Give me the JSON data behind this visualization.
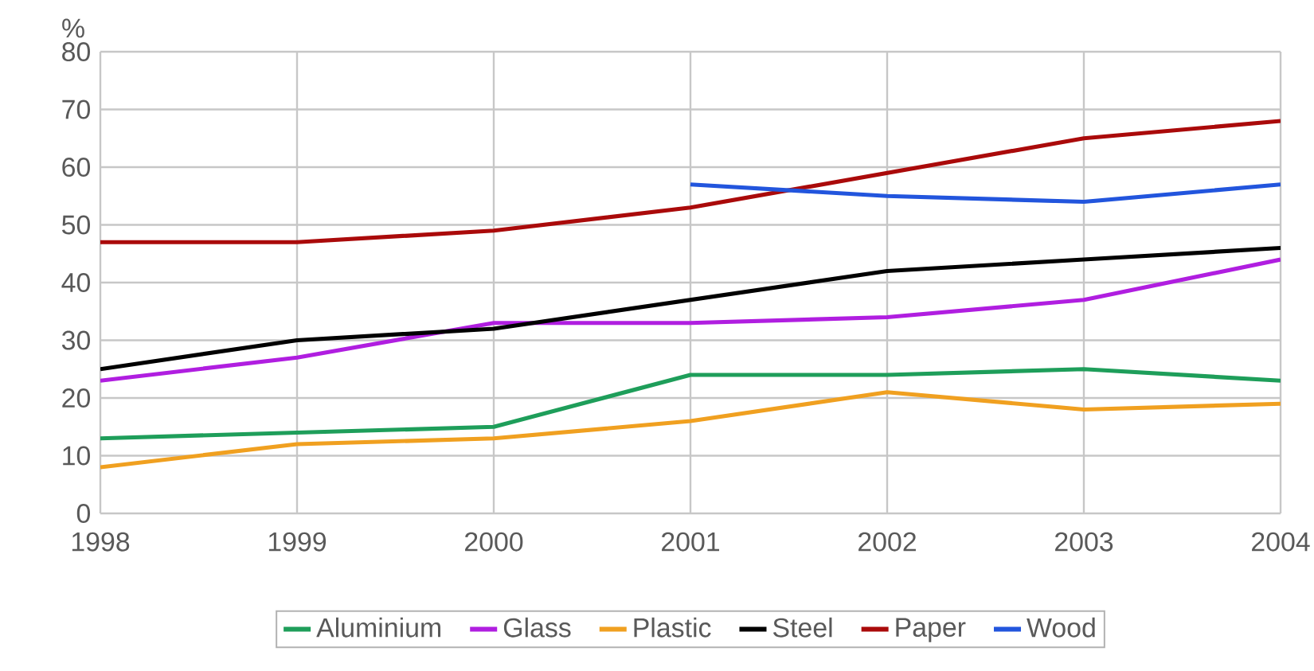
{
  "chart_data": {
    "type": "line",
    "ylabel": "%",
    "categories": [
      "1998",
      "1999",
      "2000",
      "2001",
      "2002",
      "2003",
      "2004"
    ],
    "series": [
      {
        "name": "Aluminium",
        "color": "#1e9e5a",
        "values": [
          13,
          14,
          15,
          24,
          24,
          25,
          23
        ]
      },
      {
        "name": "Glass",
        "color": "#b01ee0",
        "values": [
          23,
          27,
          33,
          33,
          34,
          37,
          44
        ]
      },
      {
        "name": "Plastic",
        "color": "#f0a020",
        "values": [
          8,
          12,
          13,
          16,
          21,
          18,
          19
        ]
      },
      {
        "name": "Steel",
        "color": "#000000",
        "values": [
          25,
          30,
          32,
          37,
          42,
          44,
          46
        ]
      },
      {
        "name": "Paper",
        "color": "#aa0a0a",
        "values": [
          47,
          47,
          49,
          53,
          59,
          65,
          68
        ]
      },
      {
        "name": "Wood",
        "color": "#2255dd",
        "values": [
          null,
          null,
          null,
          57,
          55,
          54,
          57
        ]
      }
    ],
    "ylim": [
      0,
      80
    ],
    "yticks": [
      0,
      10,
      20,
      30,
      40,
      50,
      60,
      70,
      80
    ],
    "grid": true,
    "legend": "bottom",
    "marker": "none",
    "line_style": "solid"
  }
}
